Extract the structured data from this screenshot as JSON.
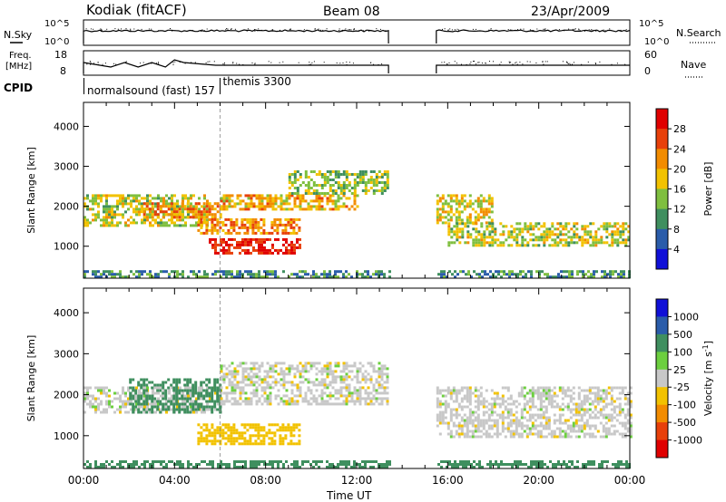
{
  "header": {
    "title": "Kodiak (fitACF)",
    "beam": "Beam 08",
    "date": "23/Apr/2009"
  },
  "status_panels": {
    "nsky_label": "N.Sky",
    "nsearch_label": "N.Search",
    "freq_label_1": "Freq.",
    "freq_label_2": "[MHz]",
    "nave_label": "Nave",
    "cpid_label": "CPID",
    "noise_ticks_left": [
      "10^5",
      "10^0"
    ],
    "noise_ticks_right": [
      "10^5",
      "10^0"
    ],
    "freq_ticks_left": [
      "18",
      "8"
    ],
    "nave_ticks_right": [
      "60",
      "0"
    ],
    "cpid_entries": [
      {
        "label": "normalsound (fast) 157",
        "start_hour": 0.0
      },
      {
        "label": "themis 3300",
        "start_hour": 6.0
      }
    ]
  },
  "chart_data": [
    {
      "type": "heatmap",
      "name": "power",
      "ylabel": "Slant Range [km]",
      "ylim": [
        200,
        4600
      ],
      "xlim": [
        0,
        24
      ],
      "y_ticks": [
        "1000",
        "2000",
        "3000",
        "4000"
      ],
      "colorbar_label": "Power [dB]",
      "colorbar_ticks": [
        "4",
        "8",
        "12",
        "16",
        "20",
        "24",
        "28"
      ],
      "colorbar_colors": [
        "#1010d8",
        "#2a5caa",
        "#3f8f5f",
        "#7fbf3f",
        "#f2c200",
        "#f28c00",
        "#e8400a",
        "#e00000"
      ],
      "data_gap_hours": [
        13.4,
        15.5
      ],
      "regions": [
        {
          "x": [
            0,
            5.5
          ],
          "y": [
            1500,
            2300
          ],
          "value": 16
        },
        {
          "x": [
            2.5,
            6
          ],
          "y": [
            1700,
            2100
          ],
          "value": 22
        },
        {
          "x": [
            5.5,
            9.5
          ],
          "y": [
            800,
            1200
          ],
          "value": 29
        },
        {
          "x": [
            5,
            9.5
          ],
          "y": [
            1300,
            1700
          ],
          "value": 22
        },
        {
          "x": [
            6,
            12
          ],
          "y": [
            1900,
            2300
          ],
          "value": 20
        },
        {
          "x": [
            9,
            13.4
          ],
          "y": [
            2300,
            2900
          ],
          "value": 14
        },
        {
          "x": [
            15.5,
            18
          ],
          "y": [
            1600,
            2300
          ],
          "value": 18
        },
        {
          "x": [
            16,
            24
          ],
          "y": [
            1000,
            1600
          ],
          "value": 16
        },
        {
          "x": [
            0,
            24
          ],
          "y": [
            250,
            400
          ],
          "value": 10
        }
      ]
    },
    {
      "type": "heatmap",
      "name": "velocity",
      "ylabel": "Slant Range [km]",
      "ylim": [
        200,
        4600
      ],
      "xlim": [
        0,
        24
      ],
      "y_ticks": [
        "1000",
        "2000",
        "3000",
        "4000"
      ],
      "colorbar_label": "Velocity [m s",
      "colorbar_label_sup": "-1",
      "colorbar_label_end": "]",
      "colorbar_ticks": [
        "1000",
        "500",
        "100",
        "25",
        "-25",
        "-100",
        "-500",
        "-1000"
      ],
      "colorbar_colors": [
        "#1010d8",
        "#2a5caa",
        "#3f8f5f",
        "#6ccf3f",
        "#c8c8c8",
        "#f2c200",
        "#f28c00",
        "#e8400a",
        "#e00000"
      ],
      "data_gap_hours": [
        13.4,
        15.5
      ],
      "regions": [
        {
          "x": [
            0,
            6
          ],
          "y": [
            1600,
            2200
          ],
          "value": 0
        },
        {
          "x": [
            2,
            6
          ],
          "y": [
            1600,
            2400
          ],
          "value": 200
        },
        {
          "x": [
            5,
            9.5
          ],
          "y": [
            800,
            1300
          ],
          "value": -60
        },
        {
          "x": [
            6,
            13.4
          ],
          "y": [
            1800,
            2800
          ],
          "value": 0
        },
        {
          "x": [
            15.5,
            24
          ],
          "y": [
            1000,
            2200
          ],
          "value": 0
        },
        {
          "x": [
            0,
            24
          ],
          "y": [
            250,
            400
          ],
          "value": 150
        }
      ]
    }
  ],
  "time_axis": {
    "label": "Time UT",
    "ticks": [
      "00:00",
      "04:00",
      "08:00",
      "12:00",
      "16:00",
      "20:00",
      "00:00"
    ]
  }
}
